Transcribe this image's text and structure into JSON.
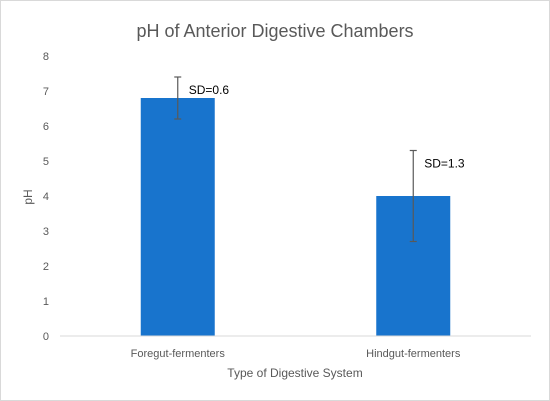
{
  "chart_data": {
    "type": "bar",
    "title": "pH of Anterior Digestive Chambers",
    "xlabel": "Type of Digestive System",
    "ylabel": "pH",
    "categories": [
      "Foregut-fermenters",
      "Hindgut-fermenters"
    ],
    "values": [
      6.8,
      4.0
    ],
    "error_bars": [
      0.6,
      1.3
    ],
    "annotations": [
      "SD=0.6",
      "SD=1.3"
    ],
    "ylim": [
      0,
      8
    ],
    "yticks": [
      0,
      1,
      2,
      3,
      4,
      5,
      6,
      7,
      8
    ],
    "grid": false,
    "legend": "none",
    "bar_color": "#1874cd",
    "error_bar_color": "#595959"
  }
}
